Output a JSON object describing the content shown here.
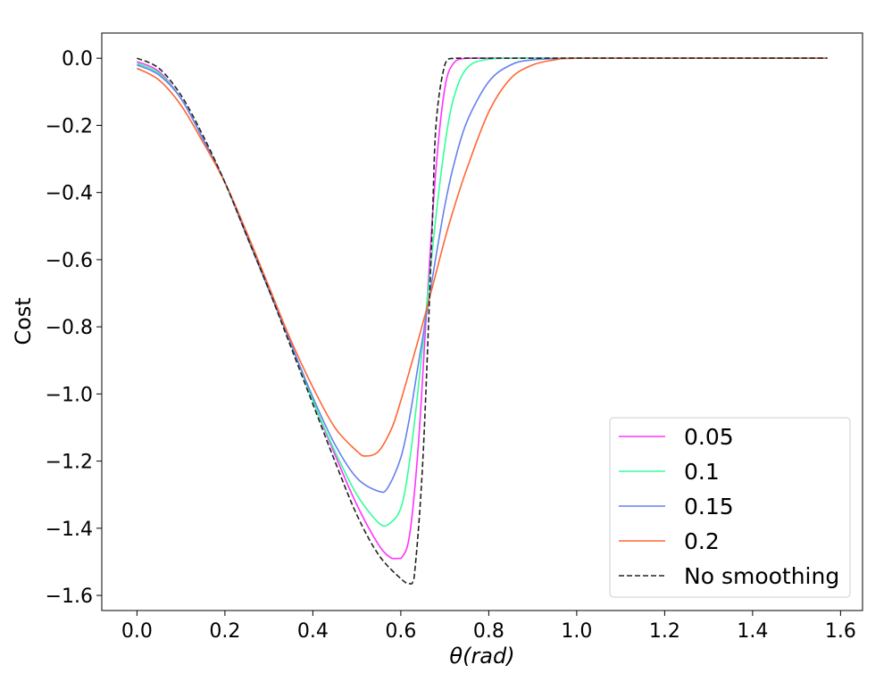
{
  "chart_data": {
    "type": "line",
    "title": "",
    "xlabel": "θ(rad)",
    "ylabel": "Cost",
    "xlim": [
      -0.08,
      1.65
    ],
    "ylim": [
      -1.645,
      0.075
    ],
    "xticks": [
      0.0,
      0.2,
      0.4,
      0.6,
      0.8,
      1.0,
      1.2,
      1.4,
      1.6
    ],
    "xtick_labels": [
      "0.0",
      "0.2",
      "0.4",
      "0.6",
      "0.8",
      "1.0",
      "1.2",
      "1.4",
      "1.6"
    ],
    "yticks": [
      0.0,
      -0.2,
      -0.4,
      -0.6,
      -0.8,
      -1.0,
      -1.2,
      -1.4,
      -1.6
    ],
    "ytick_labels": [
      "0.0",
      "−0.2",
      "−0.4",
      "−0.6",
      "−0.8",
      "−1.0",
      "−1.2",
      "−1.4",
      "−1.6"
    ],
    "grid": false,
    "legend_position": "lower-right",
    "series": [
      {
        "name": "0.05",
        "color": "#ff33ff",
        "dash": "solid",
        "x": [
          0.0,
          0.05,
          0.1,
          0.15,
          0.2,
          0.25,
          0.3,
          0.35,
          0.4,
          0.45,
          0.5,
          0.55,
          0.58,
          0.6,
          0.62,
          0.64,
          0.66,
          0.68,
          0.7,
          0.72,
          0.75,
          0.8,
          0.9,
          1.0,
          1.2,
          1.4,
          1.57
        ],
        "y": [
          -0.01,
          -0.04,
          -0.12,
          -0.24,
          -0.37,
          -0.53,
          -0.69,
          -0.85,
          -1.02,
          -1.18,
          -1.33,
          -1.45,
          -1.49,
          -1.49,
          -1.42,
          -1.15,
          -0.72,
          -0.33,
          -0.09,
          -0.015,
          0.0,
          0.0,
          0.0,
          0.0,
          0.0,
          0.0,
          0.0
        ]
      },
      {
        "name": "0.1",
        "color": "#33ff99",
        "dash": "solid",
        "x": [
          0.0,
          0.05,
          0.1,
          0.15,
          0.2,
          0.25,
          0.3,
          0.35,
          0.4,
          0.45,
          0.5,
          0.55,
          0.57,
          0.6,
          0.62,
          0.64,
          0.66,
          0.68,
          0.7,
          0.72,
          0.75,
          0.8,
          0.9,
          1.0,
          1.2,
          1.4,
          1.57
        ],
        "y": [
          -0.015,
          -0.045,
          -0.12,
          -0.24,
          -0.37,
          -0.53,
          -0.69,
          -0.85,
          -1.02,
          -1.17,
          -1.3,
          -1.385,
          -1.39,
          -1.34,
          -1.2,
          -0.98,
          -0.72,
          -0.47,
          -0.26,
          -0.12,
          -0.03,
          -0.003,
          0.0,
          0.0,
          0.0,
          0.0,
          0.0
        ]
      },
      {
        "name": "0.15",
        "color": "#6680ee",
        "dash": "solid",
        "x": [
          0.0,
          0.05,
          0.1,
          0.15,
          0.2,
          0.25,
          0.3,
          0.35,
          0.4,
          0.45,
          0.5,
          0.55,
          0.57,
          0.6,
          0.62,
          0.64,
          0.66,
          0.68,
          0.7,
          0.72,
          0.75,
          0.8,
          0.85,
          0.9,
          1.0,
          1.2,
          1.4,
          1.57
        ],
        "y": [
          -0.02,
          -0.05,
          -0.12,
          -0.24,
          -0.37,
          -0.53,
          -0.69,
          -0.85,
          -1.01,
          -1.15,
          -1.25,
          -1.29,
          -1.28,
          -1.19,
          -1.07,
          -0.91,
          -0.75,
          -0.59,
          -0.44,
          -0.32,
          -0.19,
          -0.07,
          -0.02,
          -0.005,
          0.0,
          0.0,
          0.0,
          0.0
        ]
      },
      {
        "name": "0.2",
        "color": "#ff6633",
        "dash": "solid",
        "x": [
          0.0,
          0.05,
          0.1,
          0.15,
          0.2,
          0.25,
          0.3,
          0.35,
          0.4,
          0.45,
          0.5,
          0.52,
          0.55,
          0.58,
          0.6,
          0.62,
          0.65,
          0.68,
          0.7,
          0.72,
          0.75,
          0.8,
          0.85,
          0.9,
          0.95,
          1.0,
          1.2,
          1.4,
          1.57
        ],
        "y": [
          -0.03,
          -0.065,
          -0.14,
          -0.25,
          -0.37,
          -0.52,
          -0.68,
          -0.84,
          -0.98,
          -1.1,
          -1.17,
          -1.185,
          -1.17,
          -1.1,
          -1.02,
          -0.93,
          -0.79,
          -0.64,
          -0.54,
          -0.45,
          -0.33,
          -0.16,
          -0.06,
          -0.02,
          -0.005,
          0.0,
          0.0,
          0.0,
          0.0
        ]
      },
      {
        "name": "No smoothing",
        "color": "#222222",
        "dash": "dashed",
        "x": [
          0.0,
          0.05,
          0.1,
          0.15,
          0.2,
          0.25,
          0.3,
          0.35,
          0.4,
          0.45,
          0.5,
          0.55,
          0.6,
          0.62,
          0.63,
          0.65,
          0.67,
          0.68,
          0.7,
          0.72,
          0.75,
          0.8,
          1.0,
          1.2,
          1.4,
          1.57
        ],
        "y": [
          0.0,
          -0.03,
          -0.11,
          -0.23,
          -0.37,
          -0.53,
          -0.69,
          -0.86,
          -1.03,
          -1.2,
          -1.36,
          -1.48,
          -1.55,
          -1.565,
          -1.55,
          -1.2,
          -0.55,
          -0.2,
          -0.02,
          0.0,
          0.0,
          0.0,
          0.0,
          0.0,
          0.0,
          0.0
        ]
      }
    ]
  }
}
